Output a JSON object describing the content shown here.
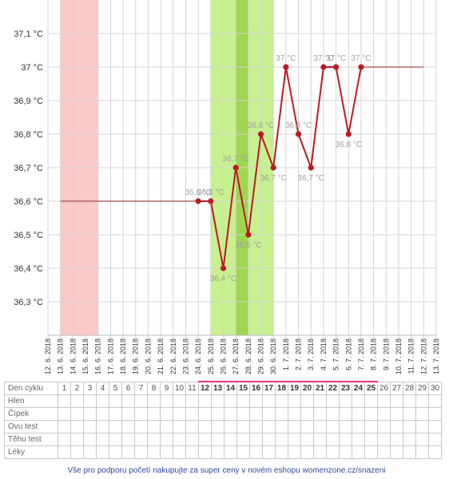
{
  "chart_data": {
    "type": "line",
    "y_unit": "°C",
    "ylim": [
      36.2,
      37.2
    ],
    "y_ticks": [
      "37,1 °C",
      "37 °C",
      "36,9 °C",
      "36,8 °C",
      "36,7 °C",
      "36,6 °C",
      "36,5 °C",
      "36,4 °C",
      "36,3 °C"
    ],
    "y_tick_values": [
      37.1,
      37.0,
      36.9,
      36.8,
      36.7,
      36.6,
      36.5,
      36.4,
      36.3
    ],
    "x_labels": [
      "12. 6. 2018",
      "13. 6. 2018",
      "14. 6. 2018",
      "15. 6. 2018",
      "16. 6. 2018",
      "17. 6. 2018",
      "18. 6. 2018",
      "19. 6. 2018",
      "20. 6. 2018",
      "21. 6. 2018",
      "22. 6. 2018",
      "23. 6. 2018",
      "24. 6. 2018",
      "25. 6. 2018",
      "26. 6. 2018",
      "27. 6. 2018",
      "28. 6. 2018",
      "29. 6. 2018",
      "30. 6. 2018",
      "1. 7. 2018",
      "2. 7. 2018",
      "3. 7. 2018",
      "4. 7. 2018",
      "5. 7. 2018",
      "6. 7. 2018",
      "7. 7. 2018",
      "8. 7. 2018",
      "9. 7. 2018",
      "10. 7. 2018",
      "11. 7. 2018",
      "12. 7. 2018",
      "13. 7. 2018"
    ],
    "shaded_bands": [
      {
        "from": "13. 6. 2018",
        "to": "15. 6. 2018",
        "color": "#fcc8c8"
      },
      {
        "from": "25. 6. 2018",
        "to": "29. 6. 2018",
        "color": "#c7f08e"
      },
      {
        "from": "27. 6. 2018",
        "to": "27. 6. 2018",
        "color": "#9ed650"
      }
    ],
    "baseline_before": {
      "from": "13. 6. 2018",
      "to": "24. 6. 2018",
      "value": 36.6
    },
    "baseline_after": {
      "from": "7. 7. 2018",
      "to": "12. 7. 2018",
      "value": 37.0
    },
    "series": [
      {
        "color": "#bb1a22",
        "points": [
          {
            "x": "24. 6. 2018",
            "y": 36.6,
            "label": "36,6 °C"
          },
          {
            "x": "25. 6. 2018",
            "y": 36.6,
            "label": "36,6 °C"
          },
          {
            "x": "26. 6. 2018",
            "y": 36.4,
            "label": "36,4 °C"
          },
          {
            "x": "27. 6. 2018",
            "y": 36.7,
            "label": "36,7 °C"
          },
          {
            "x": "28. 6. 2018",
            "y": 36.5,
            "label": "36,5 °C"
          },
          {
            "x": "29. 6. 2018",
            "y": 36.8,
            "label": "36,8 °C"
          },
          {
            "x": "30. 6. 2018",
            "y": 36.7,
            "label": "36,7 °C"
          },
          {
            "x": "1. 7. 2018",
            "y": 37.0,
            "label": "37 °C"
          },
          {
            "x": "2. 7. 2018",
            "y": 36.8,
            "label": "36,8 °C"
          },
          {
            "x": "3. 7. 2018",
            "y": 36.7,
            "label": "36,7 °C"
          },
          {
            "x": "4. 7. 2018",
            "y": 37.0,
            "label": "37 °C"
          },
          {
            "x": "5. 7. 2018",
            "y": 37.0,
            "label": "37 °C"
          },
          {
            "x": "6. 7. 2018",
            "y": 36.8,
            "label": "36,8 °C"
          },
          {
            "x": "7. 7. 2018",
            "y": 37.0,
            "label": "37 °C"
          }
        ]
      }
    ],
    "grid": true
  },
  "table": {
    "header_label": "Den cyklu",
    "days": [
      "1",
      "2",
      "3",
      "4",
      "5",
      "6",
      "7",
      "8",
      "9",
      "10",
      "11",
      "12",
      "13",
      "14",
      "15",
      "16",
      "17",
      "18",
      "19",
      "20",
      "21",
      "22",
      "23",
      "24",
      "25",
      "26",
      "27",
      "28",
      "29",
      "30"
    ],
    "highlighted_days": [
      "12",
      "13",
      "14",
      "15",
      "16",
      "17",
      "18",
      "19",
      "20",
      "21",
      "22",
      "23",
      "24",
      "25"
    ],
    "bold_days": [
      "12",
      "13",
      "14",
      "15",
      "16",
      "17",
      "18",
      "19",
      "20",
      "21",
      "22",
      "23",
      "24",
      "25"
    ],
    "rows": [
      "Hlen",
      "Čípek",
      "Ovu test",
      "Těhu test",
      "Léky"
    ]
  },
  "footer": "Vše pro podporu početí nakupujte za super ceny v novém eshopu womenzone.cz/snazeni"
}
